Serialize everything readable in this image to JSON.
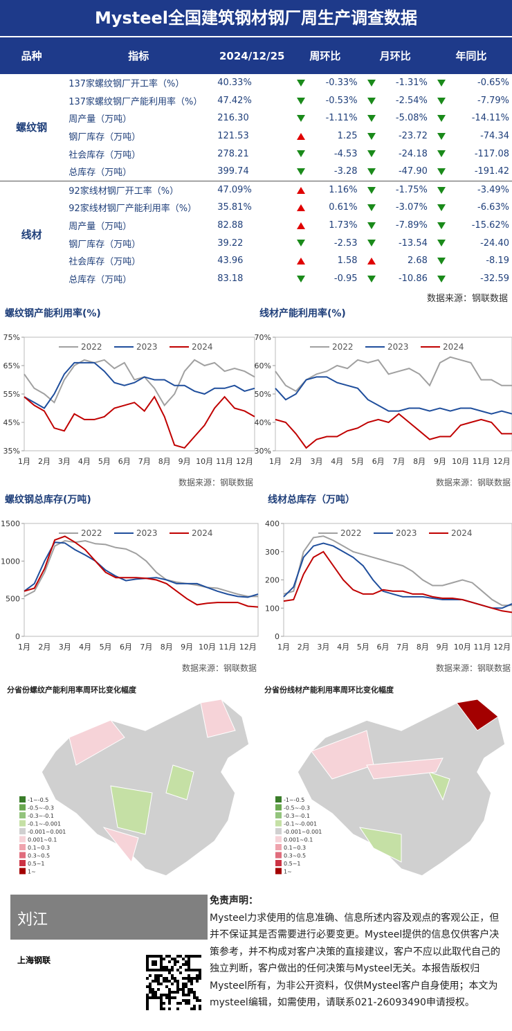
{
  "header": {
    "title": "Mysteel全国建筑钢材钢厂周生产调查数据"
  },
  "table": {
    "columns": [
      "品种",
      "指标",
      "2024/12/25",
      "周环比",
      "月环比",
      "年同比"
    ],
    "groups": [
      {
        "name": "螺纹钢",
        "rows": [
          [
            "137家螺纹钢厂开工率（%）",
            "40.33%",
            "-0.33%",
            "-1.31%",
            "-0.65%"
          ],
          [
            "137家螺纹钢厂产能利用率（%）",
            "47.42%",
            "-0.53%",
            "-2.54%",
            "-7.79%"
          ],
          [
            "周产量（万吨）",
            "216.30",
            "-1.11%",
            "-5.08%",
            "-14.11%"
          ],
          [
            "钢厂库存（万吨）",
            "121.53",
            "1.25",
            "-23.72",
            "-74.34"
          ],
          [
            "社会库存（万吨）",
            "278.21",
            "-4.53",
            "-24.18",
            "-117.08"
          ],
          [
            "总库存（万吨）",
            "399.74",
            "-3.28",
            "-47.90",
            "-191.42"
          ]
        ]
      },
      {
        "name": "线材",
        "rows": [
          [
            "92家线材钢厂开工率（%）",
            "47.09%",
            "1.16%",
            "-1.75%",
            "-3.49%"
          ],
          [
            "92家线材钢厂产能利用率（%）",
            "35.81%",
            "0.61%",
            "-3.07%",
            "-6.63%"
          ],
          [
            "周产量（万吨）",
            "82.88",
            "1.73%",
            "-7.89%",
            "-15.62%"
          ],
          [
            "钢厂库存（万吨）",
            "39.22",
            "-2.53",
            "-13.54",
            "-24.40"
          ],
          [
            "社会库存（万吨）",
            "43.96",
            "1.58",
            "2.68",
            "-8.19"
          ],
          [
            "总库存（万吨）",
            "83.18",
            "-0.95",
            "-10.86",
            "-32.59"
          ]
        ]
      }
    ],
    "source": "数据来源：钢联数据"
  },
  "chart_data": [
    {
      "type": "line",
      "title": "螺纹钢产能利用率(%)",
      "source": "数据来源：钢联数据",
      "categories": [
        "1月",
        null,
        "2月",
        null,
        "3月",
        null,
        "4月",
        null,
        "5月",
        null,
        "6月",
        null,
        "7月",
        null,
        "8月",
        null,
        "9月",
        null,
        "10月",
        null,
        "11月",
        null,
        "12月",
        null
      ],
      "ylim": [
        35,
        75
      ],
      "yticks": [
        {
          "value": 35,
          "label": "35%"
        },
        {
          "value": 45,
          "label": "45%"
        },
        {
          "value": 55,
          "label": "55%"
        },
        {
          "value": 65,
          "label": "65%"
        },
        {
          "value": 75,
          "label": "75%"
        }
      ],
      "series": [
        {
          "name": "2022",
          "color": "#a0a0a0",
          "values": [
            62,
            57,
            55,
            52,
            60,
            65,
            67,
            66,
            67,
            64,
            66,
            60,
            61,
            57,
            51,
            55,
            63,
            67,
            65,
            66,
            63,
            64,
            63,
            61
          ]
        },
        {
          "name": "2023",
          "color": "#1f4e9c",
          "values": [
            54,
            52,
            50,
            55,
            62,
            66,
            66,
            66,
            63,
            59,
            58,
            59,
            61,
            60,
            60,
            58,
            58,
            56,
            55,
            57,
            57,
            58,
            56,
            57
          ]
        },
        {
          "name": "2024",
          "color": "#c00000",
          "values": [
            54,
            51,
            49,
            43,
            42,
            48,
            46,
            46,
            47,
            50,
            51,
            52,
            49,
            54,
            47,
            37,
            36,
            40,
            44,
            50,
            54,
            50,
            49,
            47
          ]
        }
      ]
    },
    {
      "type": "line",
      "title": "线材产能利用率(%)",
      "source": "数据来源：钢联数据",
      "categories": [
        "1月",
        null,
        "2月",
        null,
        "3月",
        null,
        "4月",
        null,
        "5月",
        null,
        "6月",
        null,
        "7月",
        null,
        "8月",
        null,
        "9月",
        null,
        "10月",
        null,
        "11月",
        null,
        "12月",
        null
      ],
      "ylim": [
        30,
        70
      ],
      "yticks": [
        {
          "value": 30,
          "label": "30%"
        },
        {
          "value": 40,
          "label": "40%"
        },
        {
          "value": 50,
          "label": "50%"
        },
        {
          "value": 60,
          "label": "60%"
        },
        {
          "value": 70,
          "label": "70%"
        }
      ],
      "series": [
        {
          "name": "2022",
          "color": "#a0a0a0",
          "values": [
            58,
            53,
            51,
            55,
            57,
            58,
            60,
            59,
            62,
            61,
            62,
            57,
            58,
            59,
            57,
            53,
            61,
            63,
            62,
            61,
            55,
            55,
            53,
            53
          ]
        },
        {
          "name": "2023",
          "color": "#1f4e9c",
          "values": [
            52,
            48,
            50,
            55,
            56,
            56,
            54,
            53,
            52,
            48,
            46,
            44,
            44,
            45,
            45,
            44,
            45,
            44,
            45,
            45,
            44,
            43,
            44,
            43
          ]
        },
        {
          "name": "2024",
          "color": "#c00000",
          "values": [
            41,
            40,
            36,
            31,
            34,
            35,
            35,
            37,
            38,
            40,
            41,
            40,
            43,
            40,
            37,
            34,
            35,
            35,
            39,
            40,
            41,
            40,
            36,
            36
          ]
        }
      ]
    },
    {
      "type": "line",
      "title": "螺纹钢总库存(万吨)",
      "source": "数据来源：钢联数据",
      "categories": [
        "1月",
        null,
        "2月",
        null,
        "3月",
        null,
        "4月",
        null,
        "5月",
        null,
        "6月",
        null,
        "7月",
        null,
        "8月",
        null,
        "9月",
        null,
        "10月",
        null,
        "11月",
        null,
        "12月",
        null
      ],
      "ylim": [
        0,
        1500
      ],
      "yticks": [
        0,
        500,
        1000,
        1500
      ],
      "series": [
        {
          "name": "2022",
          "color": "#a0a0a0",
          "values": [
            530,
            600,
            850,
            1200,
            1270,
            1250,
            1270,
            1230,
            1220,
            1180,
            1160,
            1100,
            1000,
            850,
            750,
            720,
            700,
            680,
            650,
            640,
            600,
            560,
            530,
            530
          ]
        },
        {
          "name": "2023",
          "color": "#1f4e9c",
          "values": [
            600,
            700,
            1000,
            1250,
            1240,
            1150,
            1080,
            1000,
            880,
            800,
            740,
            760,
            770,
            780,
            750,
            700,
            700,
            700,
            650,
            600,
            560,
            530,
            520,
            560
          ]
        },
        {
          "name": "2024",
          "color": "#c00000",
          "values": [
            600,
            640,
            900,
            1280,
            1330,
            1250,
            1150,
            1000,
            850,
            780,
            780,
            780,
            770,
            750,
            700,
            600,
            500,
            420,
            440,
            450,
            450,
            450,
            400,
            390
          ]
        }
      ]
    },
    {
      "type": "line",
      "title": "线材总库存（万吨）",
      "source": "数据来源：钢联数据",
      "categories": [
        "1月",
        null,
        "2月",
        null,
        "3月",
        null,
        "4月",
        null,
        "5月",
        null,
        "6月",
        null,
        "7月",
        null,
        "8月",
        null,
        "9月",
        null,
        "10月",
        null,
        "11月",
        null,
        "12月",
        null
      ],
      "ylim": [
        0,
        400
      ],
      "yticks": [
        0,
        100,
        200,
        300,
        400
      ],
      "series": [
        {
          "name": "2022",
          "color": "#a0a0a0",
          "values": [
            150,
            160,
            300,
            350,
            355,
            340,
            320,
            300,
            290,
            280,
            270,
            260,
            250,
            230,
            200,
            180,
            180,
            190,
            200,
            190,
            160,
            130,
            110,
            110
          ]
        },
        {
          "name": "2023",
          "color": "#1f4e9c",
          "values": [
            140,
            175,
            280,
            320,
            330,
            320,
            300,
            280,
            250,
            200,
            160,
            150,
            140,
            140,
            140,
            135,
            130,
            130,
            130,
            120,
            110,
            100,
            100,
            115
          ]
        },
        {
          "name": "2024",
          "color": "#c00000",
          "values": [
            125,
            130,
            220,
            280,
            300,
            250,
            200,
            165,
            150,
            150,
            165,
            160,
            160,
            150,
            150,
            140,
            135,
            135,
            130,
            120,
            110,
            100,
            90,
            85
          ]
        }
      ]
    }
  ],
  "maps": {
    "titles": [
      "分省份螺纹产能利用率周环比变化幅度",
      "分省份线材产能利用率周环比变化幅度"
    ],
    "legend": [
      {
        "label": "-1~-0.5",
        "color": "#3a7d2a"
      },
      {
        "label": "-0.5~-0.3",
        "color": "#6aa84f"
      },
      {
        "label": "-0.3~-0.1",
        "color": "#93c47d"
      },
      {
        "label": "-0.1~-0.001",
        "color": "#c5e0a5"
      },
      {
        "label": "-0.001~0.001",
        "color": "#d0d0d0"
      },
      {
        "label": "0.001~0.1",
        "color": "#f6d3d8"
      },
      {
        "label": "0.1~0.3",
        "color": "#efa3ad"
      },
      {
        "label": "0.3~0.5",
        "color": "#e06c7c"
      },
      {
        "label": "0.5~1",
        "color": "#cc3344"
      },
      {
        "label": "1~",
        "color": "#a30000"
      }
    ]
  },
  "footer": {
    "author": "刘江",
    "company": "上海钢联",
    "disclaimer_title": "免责声明：",
    "disclaimer": "Mysteel力求使用的信息准确、信息所述内容及观点的客观公正，但并不保证其是否需要进行必要变更。Mysteel提供的信息仅供客户决策参考，并不构成对客户决策的直接建议，客户不应以此取代自己的独立判断，客户做出的任何决策与Mysteel无关。本报告版权归Mysteel所有，为非公开资料，仅供Mysteel客户自身使用；本文为mysteel编辑，如需使用，请联系021-26093490申请授权。"
  }
}
